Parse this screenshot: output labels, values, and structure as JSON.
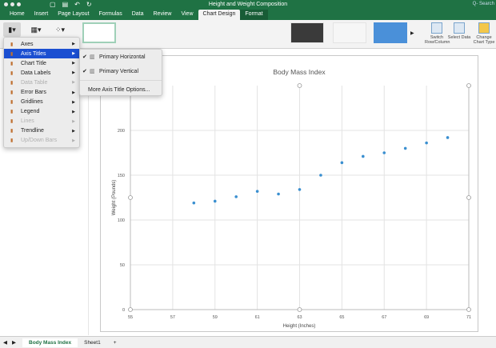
{
  "window": {
    "title": "Height and Weight Composition",
    "search_placeholder": "Q- Search"
  },
  "ribbon_tabs": [
    "Home",
    "Insert",
    "Page Layout",
    "Formulas",
    "Data",
    "Review",
    "View",
    "Chart Design",
    "Format"
  ],
  "active_tab": "Chart Design",
  "ribbon_buttons": {
    "switch": "Switch Row/Column",
    "select": "Select Data",
    "change": "Change Chart Type"
  },
  "menu": {
    "items": [
      {
        "label": "Axes",
        "enabled": true
      },
      {
        "label": "Axis Titles",
        "enabled": true,
        "selected": true
      },
      {
        "label": "Chart Title",
        "enabled": true
      },
      {
        "label": "Data Labels",
        "enabled": true
      },
      {
        "label": "Data Table",
        "enabled": false
      },
      {
        "label": "Error Bars",
        "enabled": true
      },
      {
        "label": "Gridlines",
        "enabled": true
      },
      {
        "label": "Legend",
        "enabled": true
      },
      {
        "label": "Lines",
        "enabled": false
      },
      {
        "label": "Trendline",
        "enabled": true
      },
      {
        "label": "Up/Down Bars",
        "enabled": false
      }
    ]
  },
  "submenu": {
    "items": [
      {
        "label": "Primary Horizontal",
        "checked": true
      },
      {
        "label": "Primary Vertical",
        "checked": true
      }
    ],
    "more": "More Axis Title Options..."
  },
  "sheet_tabs": [
    "Body Mass Index",
    "Sheet1"
  ],
  "active_sheet": "Body Mass Index",
  "colors": {
    "accent": "#1f7244",
    "marker": "#3a8fd0",
    "menu_selected": "#1b4fd1"
  },
  "chart_data": {
    "type": "scatter",
    "title": "Body Mass Index",
    "xlabel": "Height (Inches)",
    "ylabel": "Weight (Pounds)",
    "xlim": [
      55,
      71
    ],
    "ylim": [
      0,
      250
    ],
    "xticks": [
      55,
      57,
      59,
      61,
      63,
      65,
      67,
      69,
      71
    ],
    "yticks": [
      0,
      50,
      100,
      150,
      200
    ],
    "grid": true,
    "x": [
      58,
      59,
      60,
      61,
      62,
      63,
      64,
      65,
      66,
      67,
      68,
      69,
      70
    ],
    "y": [
      119,
      121,
      126,
      132,
      129,
      134,
      150,
      164,
      171,
      175,
      180,
      186,
      192
    ]
  }
}
